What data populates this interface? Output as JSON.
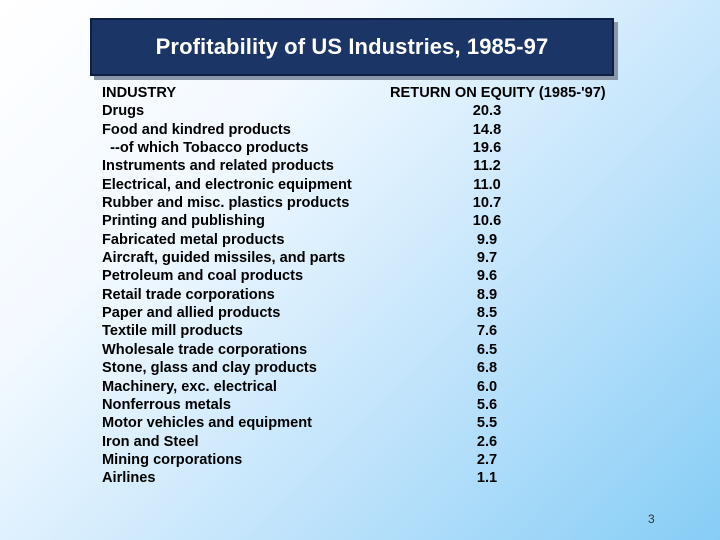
{
  "slide": {
    "title": "Profitability of US Industries, 1985-97",
    "page_number": "3"
  },
  "table": {
    "columns": [
      "INDUSTRY",
      "RETURN ON EQUITY (1985-'97)"
    ],
    "rows": [
      {
        "industry": "Drugs",
        "value": "20.3"
      },
      {
        "industry": "Food and kindred products",
        "value": "14.8"
      },
      {
        "industry": "  --of which Tobacco products",
        "value": "19.6"
      },
      {
        "industry": "Instruments and related products",
        "value": "11.2"
      },
      {
        "industry": "Electrical, and electronic equipment",
        "value": "11.0"
      },
      {
        "industry": "Rubber and misc. plastics products",
        "value": "10.7"
      },
      {
        "industry": "Printing and publishing",
        "value": "10.6"
      },
      {
        "industry": "Fabricated metal products",
        "value": "9.9"
      },
      {
        "industry": "Aircraft, guided missiles, and parts",
        "value": "9.7"
      },
      {
        "industry": "Petroleum and coal products",
        "value": "9.6"
      },
      {
        "industry": "Retail trade corporations",
        "value": "8.9"
      },
      {
        "industry": "Paper and allied products",
        "value": "8.5"
      },
      {
        "industry": "Textile mill products",
        "value": "7.6"
      },
      {
        "industry": "Wholesale trade corporations",
        "value": "6.5"
      },
      {
        "industry": "Stone, glass and clay products",
        "value": "6.8"
      },
      {
        "industry": "Machinery, exc. electrical",
        "value": "6.0"
      },
      {
        "industry": "Nonferrous metals",
        "value": "5.6"
      },
      {
        "industry": "Motor vehicles and equipment",
        "value": "5.5"
      },
      {
        "industry": "Iron and Steel",
        "value": "2.6"
      },
      {
        "industry": "Mining corporations",
        "value": "2.7"
      },
      {
        "industry": "Airlines",
        "value": "1.1"
      }
    ]
  },
  "colors": {
    "title_background": "#1b3566",
    "title_text": "#ffffff",
    "body_text": "#000000"
  }
}
